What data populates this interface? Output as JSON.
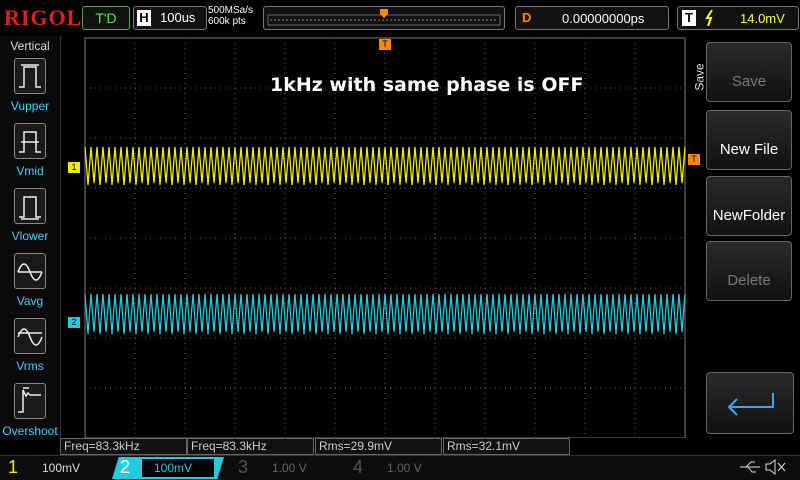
{
  "header": {
    "logo": "RIGOL",
    "status": "T'D",
    "timebase_label": "H",
    "timebase": "100us",
    "sample_rate": "500MSa/s",
    "memory_depth": "600k pts",
    "delay_label": "D",
    "delay": "0.00000000ps",
    "trigger_label": "T",
    "trigger_level": "14.0mV"
  },
  "left_panel": {
    "title": "Vertical",
    "items": [
      "Vupper",
      "Vmid",
      "Vlower",
      "Vavg",
      "Vrms",
      "Overshoot"
    ]
  },
  "screen": {
    "annotation": "1kHz with same phase is OFF",
    "channel_markers": [
      "1",
      "2"
    ],
    "trigger_marker": "T"
  },
  "right_panel": {
    "title": "Save",
    "buttons": [
      "Save",
      "New File",
      "NewFolder",
      "Delete"
    ]
  },
  "measurements": [
    "Freq=83.3kHz",
    "Freq=83.3kHz",
    "Rms=29.9mV",
    "Rms=32.1mV"
  ],
  "channels": [
    {
      "number": "1",
      "scale": "100mV"
    },
    {
      "number": "2",
      "scale": "100mV"
    },
    {
      "number": "3",
      "scale": "1.00 V"
    },
    {
      "number": "4",
      "scale": "1.00 V"
    }
  ]
}
